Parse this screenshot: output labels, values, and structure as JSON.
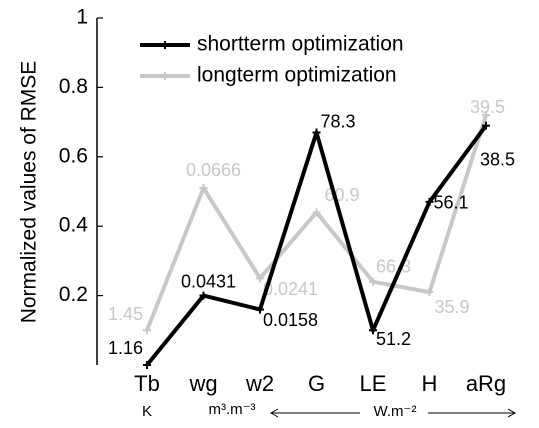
{
  "chart_data": {
    "type": "line",
    "y_label": "Normalized values of RMSE",
    "categories": [
      "Tb",
      "wg",
      "w2",
      "G",
      "LE",
      "H",
      "aRg"
    ],
    "units": [
      "K",
      "m³.m⁻³",
      "W.m⁻²"
    ],
    "ylim": [
      0,
      1
    ],
    "yticks": [
      0.2,
      0.4,
      0.6,
      0.8,
      1
    ],
    "legend": "upper left",
    "series": [
      {
        "name": "shortterm optimization",
        "color": "#000000",
        "values": [
          0.0,
          0.2,
          0.16,
          0.67,
          0.1,
          0.47,
          0.69
        ],
        "rmse": [
          1.16,
          0.0431,
          0.0158,
          78.3,
          51.2,
          56.1,
          38.5
        ]
      },
      {
        "name": "longterm optimization",
        "color": "#c8c8c8",
        "values": [
          0.1,
          0.51,
          0.25,
          0.44,
          0.24,
          0.21,
          0.72
        ],
        "rmse": [
          1.45,
          0.0666,
          0.0241,
          60.9,
          66.3,
          35.9,
          39.5
        ]
      }
    ]
  }
}
